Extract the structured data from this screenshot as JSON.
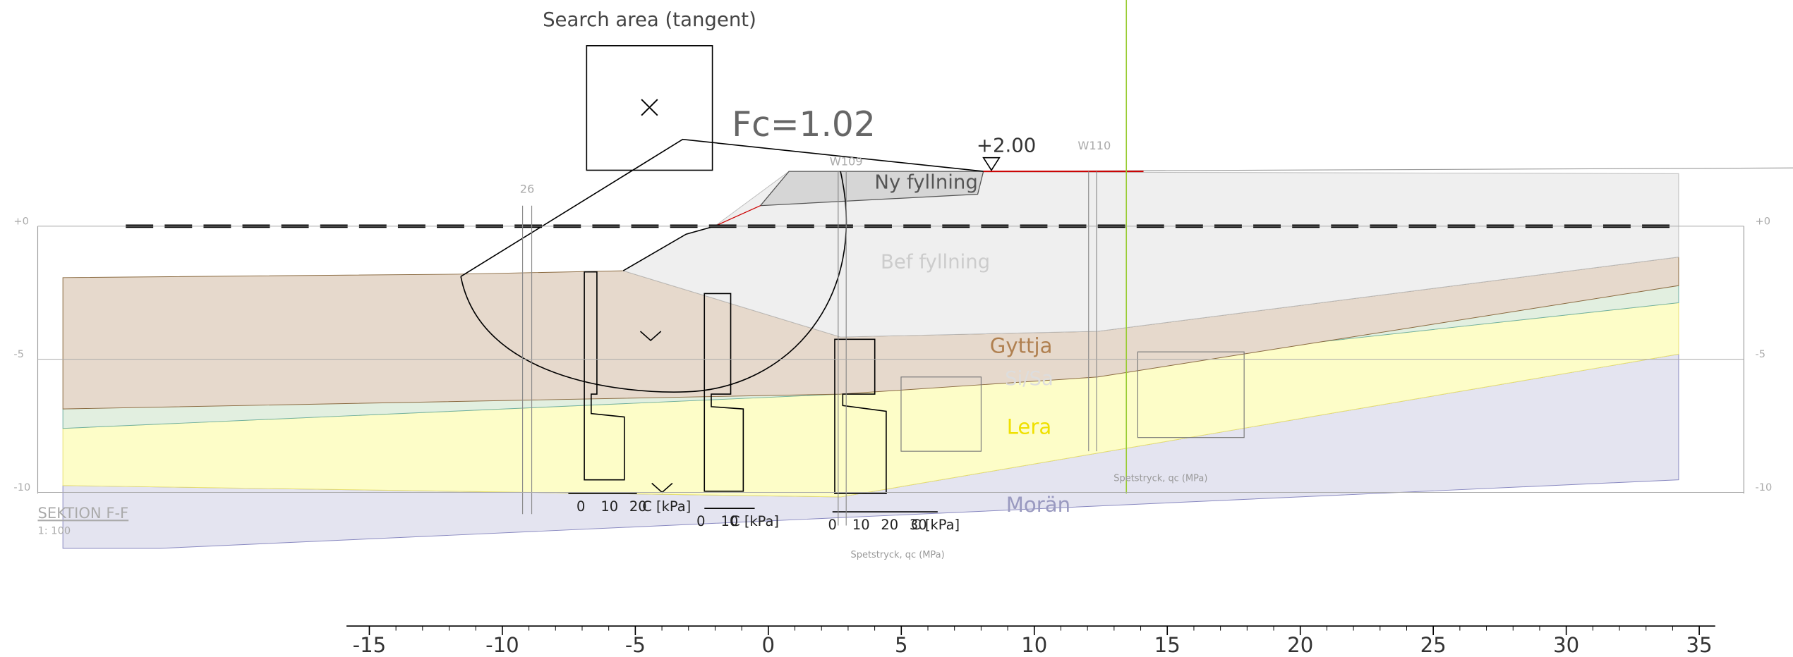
{
  "search_area": {
    "label": "Search area (tangent)"
  },
  "factor_of_safety": "Fc=1.02",
  "ground_level": "+2.00",
  "layers": [
    "Ny fyllning",
    "Bef fyllning",
    "Gyttja",
    "Si/Sa",
    "Lera",
    "Morän"
  ],
  "section": {
    "title": "SEKTION F-F",
    "scale": "1: 100"
  },
  "boreholes": [
    "26",
    "W109",
    "W110"
  ],
  "strength_plots": [
    {
      "ticks": [
        "0",
        "10",
        "20"
      ],
      "unit": "C [kPa]"
    },
    {
      "ticks": [
        "0",
        "10"
      ],
      "unit": "C [kPa]"
    },
    {
      "ticks": [
        "0",
        "10",
        "20",
        "30"
      ],
      "unit": "C [kPa]"
    }
  ],
  "cpt_labels": [
    "Spetstryck, qc (MPa)",
    "Spetstryck, qc (MPa)"
  ],
  "x_axis": {
    "ticks": [
      -15,
      -10,
      -5,
      0,
      5,
      10,
      15,
      20,
      25,
      30,
      35
    ]
  },
  "elevation_axis": {
    "ticks": [
      {
        "value": 0,
        "label": "+0"
      },
      {
        "value": -5,
        "label": "-5"
      },
      {
        "value": -10,
        "label": "-10"
      }
    ]
  }
}
